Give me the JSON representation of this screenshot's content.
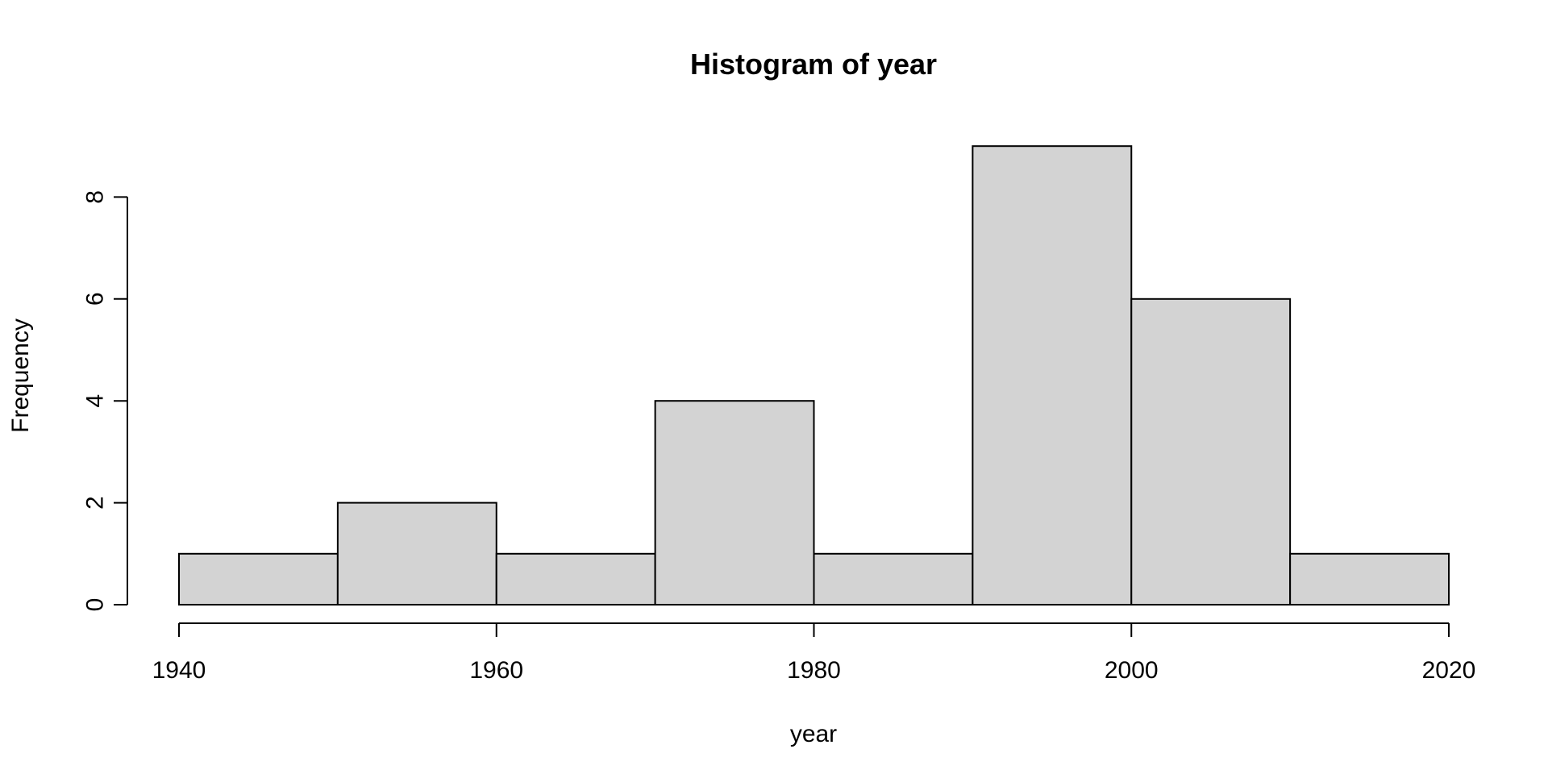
{
  "chart_data": {
    "type": "bar",
    "title": "Histogram of year",
    "xlabel": "year",
    "ylabel": "Frequency",
    "bins": [
      {
        "start": 1940,
        "end": 1950,
        "count": 1
      },
      {
        "start": 1950,
        "end": 1960,
        "count": 2
      },
      {
        "start": 1960,
        "end": 1970,
        "count": 1
      },
      {
        "start": 1970,
        "end": 1980,
        "count": 4
      },
      {
        "start": 1980,
        "end": 1990,
        "count": 1
      },
      {
        "start": 1990,
        "end": 2000,
        "count": 9
      },
      {
        "start": 2000,
        "end": 2010,
        "count": 6
      },
      {
        "start": 2010,
        "end": 2020,
        "count": 1
      }
    ],
    "xlim": [
      1940,
      2020
    ],
    "ylim": [
      0,
      9
    ],
    "x_ticks": [
      "1940",
      "1960",
      "1980",
      "2000",
      "2020"
    ],
    "y_ticks": [
      "0",
      "2",
      "4",
      "6",
      "8"
    ],
    "grid": false,
    "bar_color": "#d3d3d3",
    "outline_color": "#000000"
  }
}
